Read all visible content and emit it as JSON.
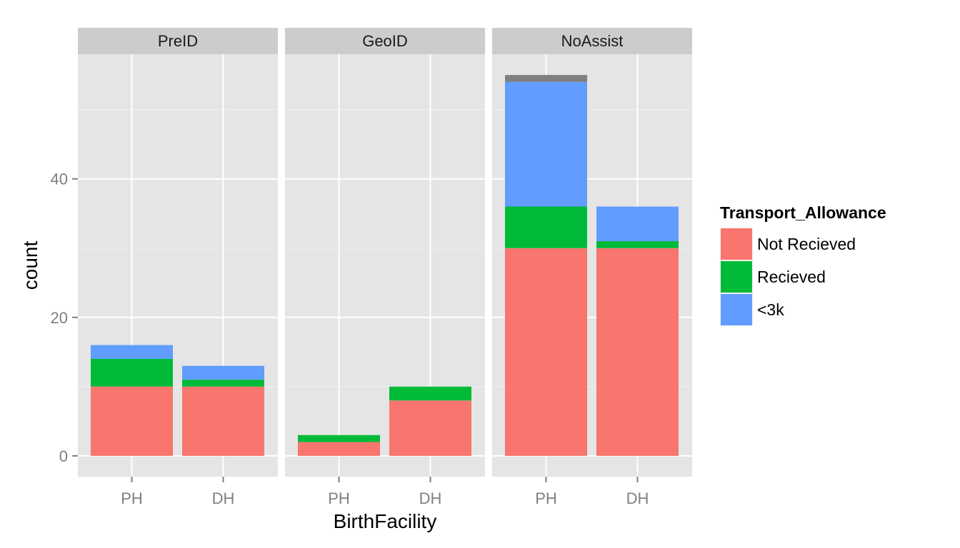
{
  "chart_data": {
    "type": "bar",
    "stacked": true,
    "facet_by": "panel",
    "panels": [
      "PreID",
      "GeoID",
      "NoAssist"
    ],
    "categories": [
      "PH",
      "DH"
    ],
    "xlabel": "BirthFacility",
    "ylabel": "count",
    "ylim": [
      -3,
      58
    ],
    "yticks": [
      0,
      20,
      40
    ],
    "grid": true,
    "legend": {
      "title": "Transport_Allowance",
      "placement": "right",
      "entries": [
        "Not Recieved",
        "Recieved",
        "<3k"
      ]
    },
    "series": [
      {
        "name": "Not Recieved",
        "color": "#f8766d",
        "values": {
          "PreID": [
            10,
            10
          ],
          "GeoID": [
            2,
            8
          ],
          "NoAssist": [
            30,
            30
          ]
        }
      },
      {
        "name": "Recieved",
        "color": "#00ba38",
        "values": {
          "PreID": [
            4,
            1
          ],
          "GeoID": [
            1,
            2
          ],
          "NoAssist": [
            6,
            1
          ]
        }
      },
      {
        "name": "<3k",
        "color": "#619cff",
        "values": {
          "PreID": [
            2,
            2
          ],
          "GeoID": [
            0,
            0
          ],
          "NoAssist": [
            18,
            5
          ]
        }
      },
      {
        "name": "",
        "color": "#7f7f7f",
        "values": {
          "PreID": [
            0,
            0
          ],
          "GeoID": [
            0,
            0
          ],
          "NoAssist": [
            1,
            0
          ]
        }
      }
    ]
  },
  "colors": {
    "panel_background": "#e5e5e5",
    "strip_background": "#cccccc",
    "grid_major": "#ffffff",
    "grid_minor": "#f2f2f2",
    "tick": "#7f7f7f"
  }
}
